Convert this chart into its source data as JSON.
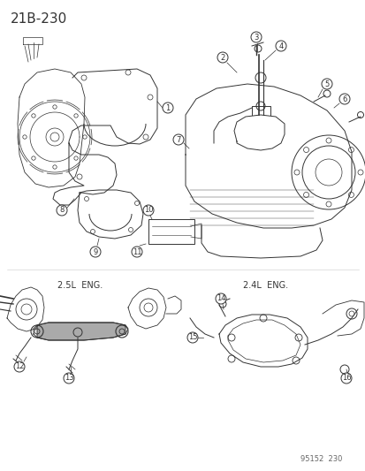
{
  "title": "21B-230",
  "bg_color": "#ffffff",
  "line_color": "#333333",
  "footer_text": "95152  230",
  "label_2_5": "2.5L  ENG.",
  "label_2_4": "2.4L  ENG.",
  "title_fontsize": 11,
  "label_fontsize": 7,
  "callout_fontsize": 6,
  "footer_fontsize": 6
}
